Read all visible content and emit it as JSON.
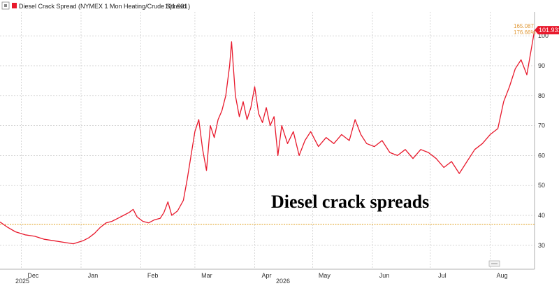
{
  "legend": {
    "marker_icon": "settings-square-icon",
    "series_name": "Diesel Crack Spread (NYMEX 1 Mon Heating/Crude Spread )",
    "last_value": "101.931"
  },
  "annotation": "Diesel crack spreads",
  "last_value_tag": "101.931",
  "change_labels": [
    "165.087",
    "176.66%"
  ],
  "year_labels": [
    "2025",
    "2026"
  ],
  "chart_data": {
    "type": "line",
    "title": "",
    "xlabel": "",
    "ylabel": "",
    "ylim": [
      22,
      108
    ],
    "yticks": [
      30,
      40,
      50,
      60,
      70,
      80,
      90,
      100
    ],
    "xtick_labels": [
      "Dec",
      "Jan",
      "Feb",
      "Mar",
      "Apr",
      "May",
      "Jun",
      "Jul",
      "Aug"
    ],
    "xtick_dates": [
      "2025-12-01",
      "2026-01-01",
      "2026-02-01",
      "2026-03-01",
      "2026-04-01",
      "2026-05-01",
      "2026-06-01",
      "2026-07-01",
      "2026-08-01"
    ],
    "x_range": [
      "2025-11-20",
      "2026-08-24"
    ],
    "grid": true,
    "reference_line": {
      "y": 37,
      "color": "#e0a020"
    },
    "series": [
      {
        "name": "Diesel Crack Spread (NYMEX 1 Mon Heating/Crude Spread )",
        "color": "#e8192c",
        "points": [
          [
            "2025-11-20",
            37.8
          ],
          [
            "2025-11-24",
            36.0
          ],
          [
            "2025-11-28",
            34.5
          ],
          [
            "2025-12-03",
            33.5
          ],
          [
            "2025-12-08",
            33.0
          ],
          [
            "2025-12-13",
            32.0
          ],
          [
            "2025-12-18",
            31.5
          ],
          [
            "2025-12-23",
            31.0
          ],
          [
            "2025-12-28",
            30.5
          ],
          [
            "2026-01-02",
            31.5
          ],
          [
            "2026-01-05",
            32.5
          ],
          [
            "2026-01-08",
            34.0
          ],
          [
            "2026-01-11",
            36.0
          ],
          [
            "2026-01-14",
            37.5
          ],
          [
            "2026-01-17",
            38.0
          ],
          [
            "2026-01-20",
            39.0
          ],
          [
            "2026-01-23",
            40.0
          ],
          [
            "2026-01-26",
            41.0
          ],
          [
            "2026-01-28",
            42.0
          ],
          [
            "2026-01-30",
            39.5
          ],
          [
            "2026-02-02",
            38.0
          ],
          [
            "2026-02-05",
            37.5
          ],
          [
            "2026-02-08",
            38.5
          ],
          [
            "2026-02-11",
            39.0
          ],
          [
            "2026-02-13",
            41.0
          ],
          [
            "2026-02-15",
            44.5
          ],
          [
            "2026-02-17",
            40.0
          ],
          [
            "2026-02-20",
            41.5
          ],
          [
            "2026-02-23",
            45.0
          ],
          [
            "2026-02-25",
            52.0
          ],
          [
            "2026-02-27",
            60.0
          ],
          [
            "2026-03-01",
            68.0
          ],
          [
            "2026-03-03",
            72.0
          ],
          [
            "2026-03-05",
            62.0
          ],
          [
            "2026-03-07",
            55.0
          ],
          [
            "2026-03-09",
            70.0
          ],
          [
            "2026-03-11",
            66.0
          ],
          [
            "2026-03-13",
            72.0
          ],
          [
            "2026-03-15",
            75.0
          ],
          [
            "2026-03-17",
            80.0
          ],
          [
            "2026-03-19",
            90.0
          ],
          [
            "2026-03-20",
            98.0
          ],
          [
            "2026-03-22",
            80.0
          ],
          [
            "2026-03-24",
            73.0
          ],
          [
            "2026-03-26",
            78.0
          ],
          [
            "2026-03-28",
            72.0
          ],
          [
            "2026-03-30",
            76.0
          ],
          [
            "2026-04-01",
            83.0
          ],
          [
            "2026-04-03",
            74.0
          ],
          [
            "2026-04-05",
            71.0
          ],
          [
            "2026-04-07",
            76.0
          ],
          [
            "2026-04-09",
            70.0
          ],
          [
            "2026-04-11",
            73.0
          ],
          [
            "2026-04-13",
            60.0
          ],
          [
            "2026-04-15",
            70.0
          ],
          [
            "2026-04-18",
            64.0
          ],
          [
            "2026-04-21",
            68.0
          ],
          [
            "2026-04-24",
            60.0
          ],
          [
            "2026-04-27",
            65.0
          ],
          [
            "2026-04-30",
            68.0
          ],
          [
            "2026-05-04",
            63.0
          ],
          [
            "2026-05-08",
            66.0
          ],
          [
            "2026-05-12",
            64.0
          ],
          [
            "2026-05-16",
            67.0
          ],
          [
            "2026-05-20",
            65.0
          ],
          [
            "2026-05-23",
            72.0
          ],
          [
            "2026-05-26",
            67.0
          ],
          [
            "2026-05-29",
            64.0
          ],
          [
            "2026-06-02",
            63.0
          ],
          [
            "2026-06-06",
            65.0
          ],
          [
            "2026-06-10",
            61.0
          ],
          [
            "2026-06-14",
            60.0
          ],
          [
            "2026-06-18",
            62.0
          ],
          [
            "2026-06-22",
            59.0
          ],
          [
            "2026-06-26",
            62.0
          ],
          [
            "2026-06-30",
            61.0
          ],
          [
            "2026-07-04",
            59.0
          ],
          [
            "2026-07-08",
            56.0
          ],
          [
            "2026-07-12",
            58.0
          ],
          [
            "2026-07-16",
            54.0
          ],
          [
            "2026-07-20",
            58.0
          ],
          [
            "2026-07-24",
            62.0
          ],
          [
            "2026-07-28",
            64.0
          ],
          [
            "2026-08-01",
            67.0
          ],
          [
            "2026-08-05",
            69.0
          ],
          [
            "2026-08-08",
            78.0
          ],
          [
            "2026-08-11",
            83.0
          ],
          [
            "2026-08-14",
            89.0
          ],
          [
            "2026-08-17",
            92.0
          ],
          [
            "2026-08-20",
            87.0
          ],
          [
            "2026-08-24",
            101.9
          ]
        ]
      }
    ]
  }
}
